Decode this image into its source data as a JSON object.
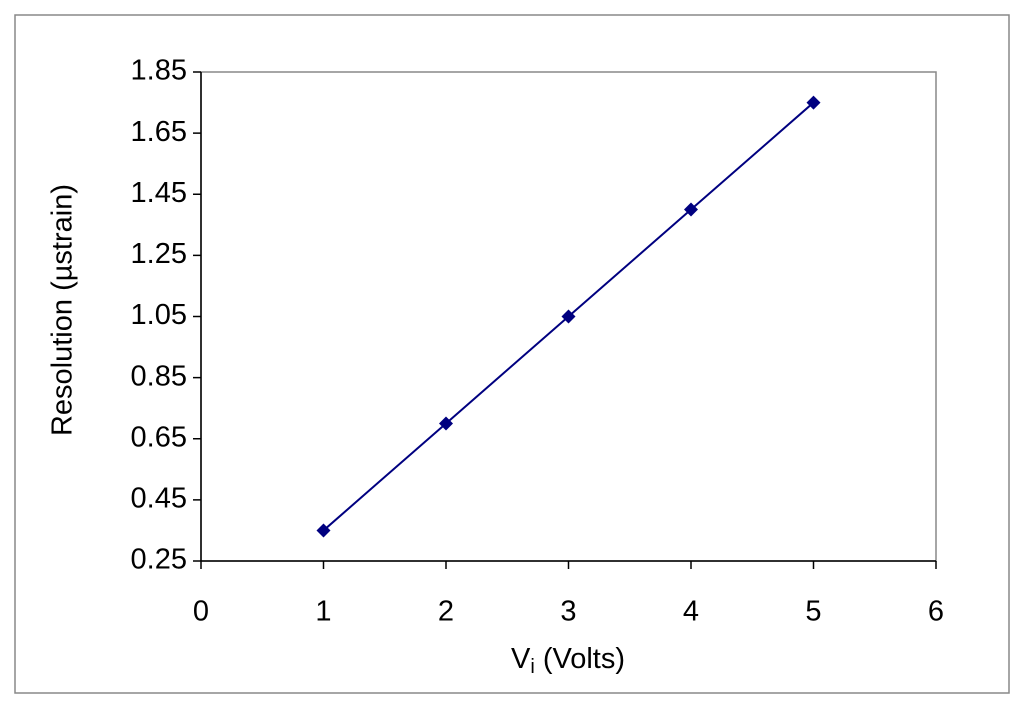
{
  "chart_data": {
    "type": "line",
    "x": [
      1,
      2,
      3,
      4,
      5
    ],
    "values": [
      0.35,
      0.7,
      1.05,
      1.4,
      1.75
    ],
    "color": "#000080",
    "marker": "diamond",
    "xlabel": [
      "V",
      "i",
      " (Volts)"
    ],
    "ylabel": "Resolution (µstrain)",
    "xlim": [
      0,
      6
    ],
    "xticks": [
      0,
      1,
      2,
      3,
      4,
      5,
      6
    ],
    "ylim": [
      0.25,
      1.85
    ],
    "yticks": [
      0.25,
      0.45,
      0.65,
      0.85,
      1.05,
      1.25,
      1.45,
      1.65,
      1.85
    ],
    "grid": false
  }
}
